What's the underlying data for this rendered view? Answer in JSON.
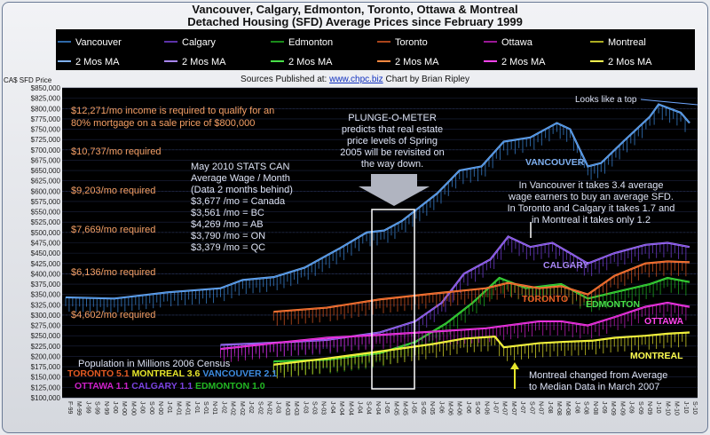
{
  "title_line1": "Vancouver, Calgary, Edmonton, Toronto, Ottawa & Montreal",
  "title_line2": "Detached Housing (SFD) Average Prices since February 1999",
  "colors": {
    "vancouver": "#3d8be0",
    "calgary": "#7a42e0",
    "edmonton": "#22b822",
    "toronto": "#e35a24",
    "ottawa": "#ce20c8",
    "montreal": "#e6e62c",
    "vancouver_ma": "#7fb0f0",
    "calgary_ma": "#a886f5",
    "edmonton_ma": "#48e048",
    "toronto_ma": "#ff8840",
    "ottawa_ma": "#ff44ee",
    "montreal_ma": "#ffff50",
    "annotation_orange": "#f5a066",
    "annotation_text": "#dde3f5",
    "grid": "#1c2440",
    "plot_bg": "#000000"
  },
  "legend": {
    "row1": [
      "Vancouver",
      "Calgary",
      "Edmonton",
      "Toronto",
      "Ottawa",
      "Montreal"
    ],
    "row2": [
      "2 Mos MA",
      "2 Mos MA",
      "2 Mos MA",
      "2 Mos MA",
      "2 Mos MA",
      "2 Mos MA"
    ]
  },
  "sources": {
    "prefix": "Sources Published at:",
    "link": "www.chpc.biz",
    "suffix": "Chart by Brian Ripley"
  },
  "annotations": {
    "income_line1": "$12,271/mo income is required to qualify for an",
    "income_line2": "80% mortgage on a sale price of $800,000",
    "req1": "$10,737/mo required",
    "req2": "$9,203/mo required",
    "req3": "$7,669/mo required",
    "req4": "$6,136/mo required",
    "req5": "$4,602/mo required",
    "plunge_lines": [
      "PLUNGE-O-METER",
      "predicts that real estate",
      "price levels of Spring",
      "2005 will be revisited on",
      "the way down."
    ],
    "stats_lines": [
      "May 2010 STATS CAN",
      "Average Wage / Month",
      "(Data 2 months behind)",
      "$3,677 /mo = Canada",
      "$3,561 /mo = BC",
      "$4,269 /mo = AB",
      "$3,790 /mo = ON",
      "$3,379 /mo = QC"
    ],
    "top_note": "Looks like a top",
    "wage_lines": [
      "In Vancouver it takes 3.4 average",
      "wage earners to buy an average SFD.",
      "In Toronto and Calgary it takes 1.7 and",
      "in Montreal it takes only 1.2"
    ],
    "montreal_note_line1": "Montreal changed from Average",
    "montreal_note_line2": "to Median Data  in March 2007",
    "population_title": "Population in Millions 2006 Census",
    "population_row1": [
      {
        "city": "TORONTO",
        "value": "5.1",
        "color": "#e35a24"
      },
      {
        "city": "MONTREAL",
        "value": "3.6",
        "color": "#e6e62c"
      },
      {
        "city": "VANCOUVER",
        "value": "2.1",
        "color": "#3d8be0"
      }
    ],
    "population_row2": [
      {
        "city": "OTTAWA",
        "value": "1.1",
        "color": "#ce20c8"
      },
      {
        "city": "CALGARY",
        "value": "1.1",
        "color": "#7a42e0"
      },
      {
        "city": "EDMONTON",
        "value": "1.0",
        "color": "#22b822"
      }
    ],
    "series_labels": [
      "VANCOUVER",
      "CALGARY",
      "TORONTO",
      "EDMONTON",
      "OTTAWA",
      "MONTREAL"
    ]
  },
  "chart_data": {
    "type": "line",
    "ylabel": "CA$ SFD Price",
    "ylim": [
      100000,
      850000
    ],
    "ytick_step": 25000,
    "ytick_labels": [
      "$850,000",
      "$825,000",
      "$800,000",
      "$775,000",
      "$750,000",
      "$725,000",
      "$700,000",
      "$675,000",
      "$650,000",
      "$625,000",
      "$600,000",
      "$575,000",
      "$550,000",
      "$525,000",
      "$500,000",
      "$475,000",
      "$450,000",
      "$425,000",
      "$400,000",
      "$375,000",
      "$350,000",
      "$325,000",
      "$300,000",
      "$275,000",
      "$250,000",
      "$225,000",
      "$200,000",
      "$175,000",
      "$150,000",
      "$125,000",
      "$100,000"
    ],
    "x_range": [
      "1999-02",
      "2010-11"
    ],
    "xtick_labels": [
      "F-99",
      "M-99",
      "J-99",
      "S-99",
      "N-99",
      "J-00",
      "M-00",
      "M-00",
      "J-00",
      "S-00",
      "N-00",
      "J-01",
      "M-01",
      "M-01",
      "J-01",
      "S-01",
      "N-01",
      "J-02",
      "M-02",
      "M-02",
      "J-02",
      "S-02",
      "N-02",
      "J-03",
      "M-03",
      "M-03",
      "J-03",
      "S-03",
      "N-03",
      "J-04",
      "M-04",
      "M-04",
      "J-04",
      "S-04",
      "N-04",
      "J-05",
      "M-05",
      "M-05",
      "J-05",
      "S-05",
      "N-05",
      "J-06",
      "M-06",
      "M-06",
      "J-06",
      "S-06",
      "N-06",
      "J-07",
      "M-07",
      "M-07",
      "J-07",
      "S-07",
      "N-07",
      "J-08",
      "M-08",
      "M-08",
      "J-08",
      "S-08",
      "N-08",
      "J-09",
      "M-09",
      "M-09",
      "J-09",
      "S-09",
      "N-09",
      "J-10",
      "M-10",
      "M-10",
      "J-10",
      "S-10"
    ],
    "grid": true,
    "legend_position": "top",
    "series": [
      {
        "name": "Vancouver",
        "key": "vancouver",
        "points": [
          [
            "1999-02",
            343000
          ],
          [
            "2000-01",
            340000
          ],
          [
            "2001-01",
            355000
          ],
          [
            "2002-01",
            365000
          ],
          [
            "2002-06",
            385000
          ],
          [
            "2003-01",
            392000
          ],
          [
            "2003-08",
            415000
          ],
          [
            "2004-04",
            462000
          ],
          [
            "2004-10",
            500000
          ],
          [
            "2005-02",
            505000
          ],
          [
            "2005-06",
            528000
          ],
          [
            "2006-02",
            595000
          ],
          [
            "2006-07",
            650000
          ],
          [
            "2006-12",
            660000
          ],
          [
            "2007-05",
            720000
          ],
          [
            "2007-11",
            730000
          ],
          [
            "2008-05",
            765000
          ],
          [
            "2008-08",
            750000
          ],
          [
            "2008-12",
            660000
          ],
          [
            "2009-03",
            668000
          ],
          [
            "2009-08",
            720000
          ],
          [
            "2010-02",
            780000
          ],
          [
            "2010-04",
            810000
          ],
          [
            "2010-09",
            790000
          ],
          [
            "2010-11",
            765000
          ]
        ]
      },
      {
        "name": "Calgary",
        "key": "calgary",
        "points": [
          [
            "2002-01",
            228000
          ],
          [
            "2003-01",
            233000
          ],
          [
            "2004-01",
            240000
          ],
          [
            "2005-01",
            258000
          ],
          [
            "2005-09",
            285000
          ],
          [
            "2006-03",
            330000
          ],
          [
            "2006-08",
            400000
          ],
          [
            "2007-02",
            435000
          ],
          [
            "2007-06",
            490000
          ],
          [
            "2007-11",
            465000
          ],
          [
            "2008-04",
            475000
          ],
          [
            "2008-12",
            425000
          ],
          [
            "2009-06",
            450000
          ],
          [
            "2010-01",
            470000
          ],
          [
            "2010-06",
            475000
          ],
          [
            "2010-11",
            465000
          ]
        ]
      },
      {
        "name": "Edmonton",
        "key": "edmonton",
        "points": [
          [
            "2003-01",
            188000
          ],
          [
            "2004-01",
            192000
          ],
          [
            "2005-01",
            208000
          ],
          [
            "2005-09",
            235000
          ],
          [
            "2006-04",
            280000
          ],
          [
            "2006-10",
            330000
          ],
          [
            "2007-04",
            390000
          ],
          [
            "2007-10",
            365000
          ],
          [
            "2008-06",
            375000
          ],
          [
            "2008-12",
            340000
          ],
          [
            "2009-06",
            355000
          ],
          [
            "2010-02",
            375000
          ],
          [
            "2010-06",
            390000
          ],
          [
            "2010-11",
            380000
          ]
        ]
      },
      {
        "name": "Toronto",
        "key": "toronto",
        "points": [
          [
            "2003-01",
            308000
          ],
          [
            "2004-01",
            318000
          ],
          [
            "2005-01",
            338000
          ],
          [
            "2006-01",
            352000
          ],
          [
            "2007-01",
            365000
          ],
          [
            "2007-06",
            378000
          ],
          [
            "2008-01",
            365000
          ],
          [
            "2008-06",
            370000
          ],
          [
            "2008-12",
            350000
          ],
          [
            "2009-06",
            395000
          ],
          [
            "2010-01",
            425000
          ],
          [
            "2010-06",
            430000
          ],
          [
            "2010-11",
            428000
          ]
        ]
      },
      {
        "name": "Ottawa",
        "key": "ottawa",
        "points": [
          [
            "2002-01",
            218000
          ],
          [
            "2003-01",
            232000
          ],
          [
            "2004-01",
            245000
          ],
          [
            "2005-01",
            252000
          ],
          [
            "2006-01",
            260000
          ],
          [
            "2007-01",
            268000
          ],
          [
            "2008-01",
            285000
          ],
          [
            "2008-06",
            285000
          ],
          [
            "2008-12",
            275000
          ],
          [
            "2009-06",
            295000
          ],
          [
            "2010-01",
            320000
          ],
          [
            "2010-06",
            330000
          ],
          [
            "2010-11",
            320000
          ]
        ]
      },
      {
        "name": "Montreal",
        "key": "montreal",
        "points": [
          [
            "2003-01",
            180000
          ],
          [
            "2004-01",
            195000
          ],
          [
            "2005-01",
            212000
          ],
          [
            "2006-01",
            230000
          ],
          [
            "2006-08",
            243000
          ],
          [
            "2007-03",
            248000
          ],
          [
            "2007-05",
            222000
          ],
          [
            "2008-01",
            232000
          ],
          [
            "2008-06",
            235000
          ],
          [
            "2009-01",
            238000
          ],
          [
            "2009-06",
            245000
          ],
          [
            "2010-01",
            250000
          ],
          [
            "2010-06",
            255000
          ],
          [
            "2010-11",
            258000
          ]
        ]
      }
    ]
  }
}
